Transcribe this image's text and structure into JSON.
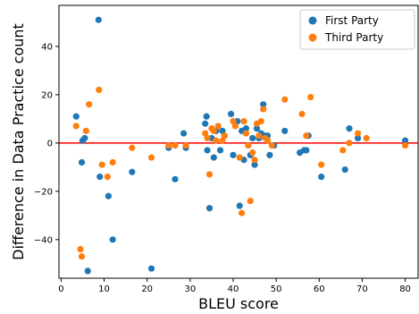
{
  "chart_data": {
    "type": "scatter",
    "xlabel": "BLEU score",
    "ylabel": "Difference in Data Practice count",
    "xlim": [
      -0.5,
      83
    ],
    "ylim": [
      -56,
      57
    ],
    "x_ticks": [
      0,
      10,
      20,
      30,
      40,
      50,
      60,
      70,
      80
    ],
    "y_ticks": [
      -40,
      -20,
      0,
      20,
      40
    ],
    "reference_line": {
      "y": 0,
      "color": "#ff0000"
    },
    "legend_position": "top-right",
    "series": [
      {
        "name": "First Party",
        "color": "#1f77b4",
        "points": [
          [
            3.5,
            11
          ],
          [
            4.8,
            -8
          ],
          [
            5.0,
            1
          ],
          [
            5.5,
            2
          ],
          [
            6.2,
            -53
          ],
          [
            8.7,
            51
          ],
          [
            9.0,
            -14
          ],
          [
            11.0,
            -22
          ],
          [
            12.0,
            -40
          ],
          [
            16.5,
            -12
          ],
          [
            21.0,
            -52
          ],
          [
            25.0,
            -2
          ],
          [
            26.5,
            -15
          ],
          [
            28.5,
            4
          ],
          [
            29.0,
            -2
          ],
          [
            33.5,
            8
          ],
          [
            33.8,
            11
          ],
          [
            34.0,
            -3
          ],
          [
            34.5,
            -27
          ],
          [
            35.0,
            2
          ],
          [
            35.5,
            -6
          ],
          [
            36.0,
            5
          ],
          [
            37.0,
            -3
          ],
          [
            37.5,
            5
          ],
          [
            38.0,
            3
          ],
          [
            39.5,
            12
          ],
          [
            40.0,
            -5
          ],
          [
            41.0,
            9
          ],
          [
            41.5,
            -26
          ],
          [
            42.0,
            5
          ],
          [
            42.5,
            -7
          ],
          [
            43.0,
            6
          ],
          [
            44.0,
            -5
          ],
          [
            44.5,
            2
          ],
          [
            45.0,
            -9
          ],
          [
            45.5,
            6
          ],
          [
            46.0,
            2
          ],
          [
            46.5,
            4
          ],
          [
            47.0,
            16
          ],
          [
            47.5,
            3
          ],
          [
            48.0,
            3
          ],
          [
            48.5,
            -5
          ],
          [
            49.5,
            -1
          ],
          [
            52.0,
            5
          ],
          [
            55.5,
            -4
          ],
          [
            56.5,
            -3
          ],
          [
            57.0,
            -3
          ],
          [
            57.5,
            3
          ],
          [
            60.5,
            -14
          ],
          [
            66.0,
            -11
          ],
          [
            67.0,
            6
          ],
          [
            69.0,
            2
          ],
          [
            80.0,
            1
          ]
        ]
      },
      {
        "name": "Third Party",
        "color": "#ff7f0e",
        "points": [
          [
            3.5,
            7
          ],
          [
            4.5,
            -44
          ],
          [
            4.8,
            -47
          ],
          [
            5.8,
            5
          ],
          [
            6.5,
            16
          ],
          [
            8.8,
            22
          ],
          [
            9.5,
            -9
          ],
          [
            10.8,
            -14
          ],
          [
            12.0,
            -8
          ],
          [
            16.5,
            -2
          ],
          [
            21.0,
            -6
          ],
          [
            25.0,
            -1
          ],
          [
            26.5,
            -1
          ],
          [
            29.0,
            -1
          ],
          [
            33.5,
            4
          ],
          [
            34.0,
            2
          ],
          [
            34.5,
            -13
          ],
          [
            35.0,
            6
          ],
          [
            35.5,
            5
          ],
          [
            36.0,
            1
          ],
          [
            36.5,
            7
          ],
          [
            37.5,
            1
          ],
          [
            38.0,
            3
          ],
          [
            40.0,
            9
          ],
          [
            40.5,
            7
          ],
          [
            41.5,
            -6
          ],
          [
            42.0,
            -29
          ],
          [
            42.5,
            9
          ],
          [
            43.0,
            4
          ],
          [
            43.5,
            -1
          ],
          [
            44.0,
            -24
          ],
          [
            44.5,
            -4
          ],
          [
            45.0,
            -7
          ],
          [
            45.5,
            8
          ],
          [
            46.0,
            3
          ],
          [
            46.5,
            9
          ],
          [
            47.0,
            14
          ],
          [
            47.5,
            2
          ],
          [
            48.0,
            1
          ],
          [
            49.0,
            -1
          ],
          [
            52.0,
            18
          ],
          [
            56.0,
            12
          ],
          [
            57.0,
            3
          ],
          [
            58.0,
            19
          ],
          [
            60.5,
            -9
          ],
          [
            65.5,
            -3
          ],
          [
            67.0,
            0
          ],
          [
            69.0,
            4
          ],
          [
            71.0,
            2
          ],
          [
            80.0,
            -1
          ]
        ]
      }
    ]
  }
}
